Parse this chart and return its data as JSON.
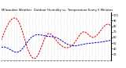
{
  "title": "Milwaukee Weather  Outdoor Humidity vs. Temperature Every 5 Minutes",
  "title_fontsize": 2.8,
  "bg_color": "#ffffff",
  "plot_bg_color": "#ffffff",
  "grid_color": "#cccccc",
  "red_color": "#dd0000",
  "blue_color": "#0000cc",
  "line_width": 0.7,
  "n_points": 200,
  "ylim": [
    20,
    105
  ],
  "yticks_right": [
    30,
    40,
    50,
    60,
    70,
    80,
    90,
    100
  ],
  "ytick_fontsize": 2.5,
  "xtick_fontsize": 2.0,
  "figsize": [
    1.6,
    0.87
  ],
  "dpi": 100,
  "red_shape": [
    55,
    90,
    85,
    35,
    28,
    65,
    55,
    42,
    50,
    70,
    60,
    75,
    80
  ],
  "blue_shape": [
    42,
    38,
    35,
    55,
    65,
    62,
    60,
    50,
    45,
    48,
    50,
    52,
    55
  ]
}
